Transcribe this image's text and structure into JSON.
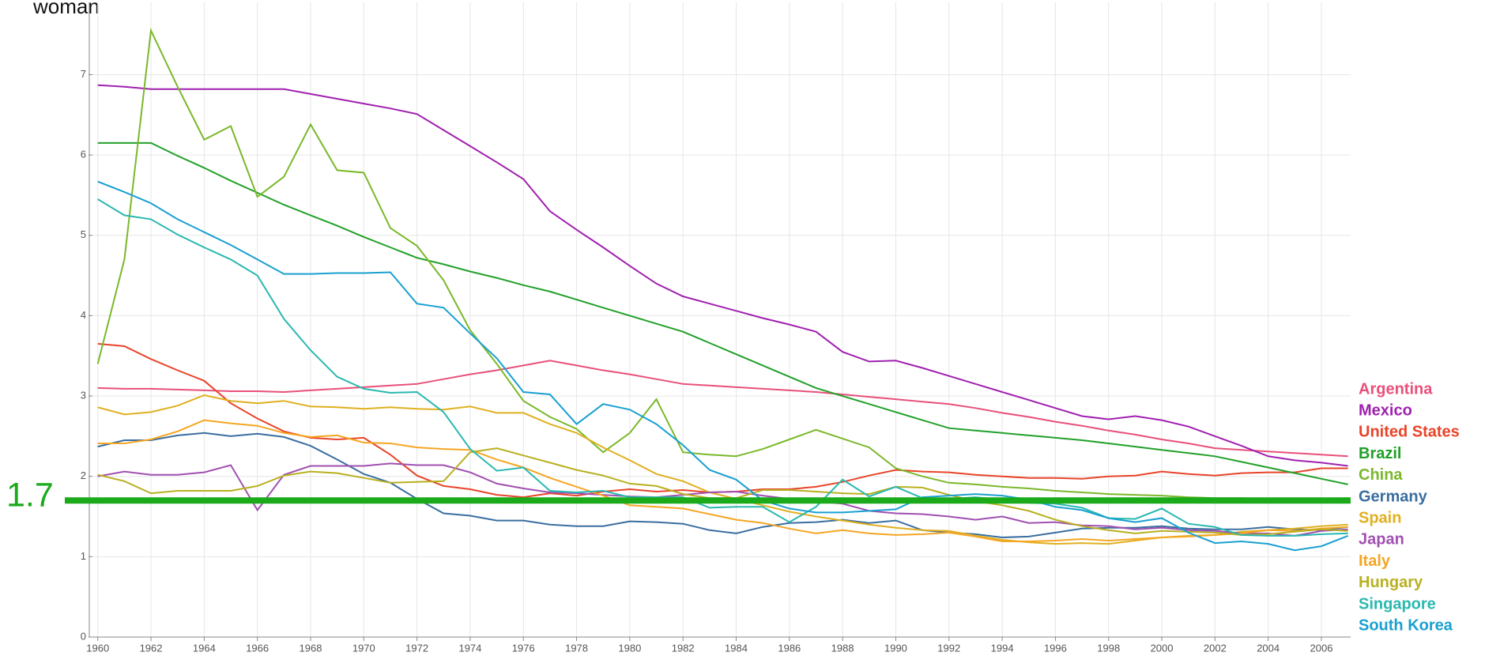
{
  "chart_data": {
    "type": "line",
    "y_label": "woman",
    "x": [
      1960,
      1961,
      1962,
      1963,
      1964,
      1965,
      1966,
      1967,
      1968,
      1969,
      1970,
      1971,
      1972,
      1973,
      1974,
      1975,
      1976,
      1977,
      1978,
      1979,
      1980,
      1981,
      1982,
      1983,
      1984,
      1985,
      1986,
      1987,
      1988,
      1989,
      1990,
      1991,
      1992,
      1993,
      1994,
      1995,
      1996,
      1997,
      1998,
      1999,
      2000,
      2001,
      2002,
      2003,
      2004,
      2005,
      2006,
      2007
    ],
    "xlim": [
      1959.8,
      2007.1
    ],
    "xticks": [
      1960,
      1962,
      1964,
      1966,
      1968,
      1970,
      1972,
      1974,
      1976,
      1978,
      1980,
      1982,
      1984,
      1986,
      1988,
      1990,
      1992,
      1994,
      1996,
      1998,
      2000,
      2002,
      2004,
      2006
    ],
    "ylim": [
      0,
      7.9
    ],
    "yticks": [
      0,
      1,
      2,
      3,
      4,
      5,
      6,
      7
    ],
    "grid": true,
    "hline": 1.7,
    "hline_color": "#1aaa1a",
    "series": [
      {
        "name": "Argentina",
        "color": "#e8507a",
        "values": [
          3.1,
          3.09,
          3.09,
          3.08,
          3.07,
          3.06,
          3.06,
          3.05,
          3.07,
          3.09,
          3.11,
          3.13,
          3.15,
          3.21,
          3.27,
          3.32,
          3.38,
          3.44,
          3.38,
          3.32,
          3.27,
          3.21,
          3.15,
          3.13,
          3.11,
          3.09,
          3.07,
          3.05,
          3.02,
          2.99,
          2.96,
          2.93,
          2.9,
          2.85,
          2.79,
          2.74,
          2.68,
          2.63,
          2.57,
          2.52,
          2.46,
          2.41,
          2.35,
          2.33,
          2.31,
          2.29,
          2.27,
          2.25
        ]
      },
      {
        "name": "Mexico",
        "color": "#a020b0",
        "values": [
          6.87,
          6.85,
          6.82,
          6.82,
          6.82,
          6.82,
          6.82,
          6.82,
          6.76,
          6.7,
          6.64,
          6.58,
          6.51,
          6.31,
          6.11,
          5.91,
          5.7,
          5.3,
          5.07,
          4.85,
          4.62,
          4.4,
          4.24,
          4.15,
          4.06,
          3.97,
          3.89,
          3.8,
          3.55,
          3.43,
          3.44,
          3.35,
          3.25,
          3.15,
          3.05,
          2.95,
          2.85,
          2.75,
          2.71,
          2.75,
          2.7,
          2.62,
          2.5,
          2.38,
          2.25,
          2.2,
          2.17,
          2.13
        ]
      },
      {
        "name": "United States",
        "color": "#e8442a",
        "values": [
          3.65,
          3.62,
          3.46,
          3.32,
          3.19,
          2.91,
          2.72,
          2.56,
          2.48,
          2.46,
          2.48,
          2.27,
          2.01,
          1.88,
          1.84,
          1.77,
          1.74,
          1.79,
          1.76,
          1.81,
          1.84,
          1.81,
          1.83,
          1.8,
          1.81,
          1.84,
          1.84,
          1.87,
          1.93,
          2.01,
          2.08,
          2.06,
          2.05,
          2.02,
          2.0,
          1.98,
          1.98,
          1.97,
          2.0,
          2.01,
          2.06,
          2.03,
          2.01,
          2.04,
          2.05,
          2.05,
          2.1,
          2.1
        ]
      },
      {
        "name": "Brazil",
        "color": "#22a02a",
        "values": [
          6.15,
          6.15,
          6.15,
          5.99,
          5.84,
          5.68,
          5.53,
          5.38,
          5.25,
          5.12,
          4.98,
          4.85,
          4.72,
          4.64,
          4.55,
          4.47,
          4.38,
          4.3,
          4.2,
          4.1,
          4.0,
          3.9,
          3.8,
          3.66,
          3.52,
          3.38,
          3.24,
          3.1,
          3.0,
          2.9,
          2.8,
          2.7,
          2.6,
          2.57,
          2.54,
          2.51,
          2.48,
          2.45,
          2.41,
          2.37,
          2.33,
          2.29,
          2.25,
          2.18,
          2.11,
          2.04,
          1.97,
          1.9
        ]
      },
      {
        "name": "China",
        "color": "#7ab82a",
        "values": [
          3.4,
          4.7,
          7.55,
          6.85,
          6.19,
          6.36,
          5.48,
          5.73,
          6.38,
          5.81,
          5.78,
          5.09,
          4.87,
          4.44,
          3.82,
          3.4,
          2.94,
          2.74,
          2.59,
          2.3,
          2.54,
          2.96,
          2.3,
          2.27,
          2.25,
          2.34,
          2.46,
          2.58,
          2.47,
          2.36,
          2.1,
          2.0,
          1.92,
          1.9,
          1.87,
          1.85,
          1.82,
          1.8,
          1.78,
          1.77,
          1.76,
          1.74,
          1.73,
          1.73,
          1.72,
          1.72,
          1.72,
          1.73
        ]
      },
      {
        "name": "Germany",
        "color": "#3a6ea0",
        "values": [
          2.37,
          2.45,
          2.45,
          2.51,
          2.54,
          2.5,
          2.53,
          2.49,
          2.38,
          2.21,
          2.03,
          1.92,
          1.72,
          1.54,
          1.51,
          1.45,
          1.45,
          1.4,
          1.38,
          1.38,
          1.44,
          1.43,
          1.41,
          1.33,
          1.29,
          1.37,
          1.42,
          1.43,
          1.46,
          1.42,
          1.45,
          1.33,
          1.3,
          1.28,
          1.24,
          1.25,
          1.3,
          1.35,
          1.36,
          1.36,
          1.38,
          1.35,
          1.34,
          1.34,
          1.37,
          1.34,
          1.33,
          1.37
        ]
      },
      {
        "name": "Spain",
        "color": "#e0b020",
        "values": [
          2.86,
          2.77,
          2.8,
          2.88,
          3.01,
          2.94,
          2.91,
          2.94,
          2.87,
          2.86,
          2.84,
          2.86,
          2.84,
          2.83,
          2.87,
          2.79,
          2.79,
          2.65,
          2.54,
          2.36,
          2.2,
          2.03,
          1.94,
          1.8,
          1.72,
          1.64,
          1.56,
          1.5,
          1.45,
          1.4,
          1.36,
          1.33,
          1.32,
          1.26,
          1.21,
          1.18,
          1.16,
          1.17,
          1.16,
          1.2,
          1.24,
          1.26,
          1.27,
          1.31,
          1.33,
          1.35,
          1.38,
          1.4
        ]
      },
      {
        "name": "Japan",
        "color": "#a050b0",
        "values": [
          2.0,
          2.06,
          2.02,
          2.02,
          2.05,
          2.14,
          1.58,
          2.02,
          2.13,
          2.13,
          2.13,
          2.16,
          2.14,
          2.14,
          2.05,
          1.91,
          1.85,
          1.8,
          1.79,
          1.77,
          1.75,
          1.74,
          1.77,
          1.8,
          1.81,
          1.76,
          1.72,
          1.69,
          1.66,
          1.57,
          1.54,
          1.53,
          1.5,
          1.46,
          1.5,
          1.42,
          1.43,
          1.39,
          1.38,
          1.34,
          1.36,
          1.33,
          1.32,
          1.29,
          1.29,
          1.26,
          1.32,
          1.34
        ]
      },
      {
        "name": "Italy",
        "color": "#f5a623",
        "values": [
          2.41,
          2.41,
          2.46,
          2.56,
          2.7,
          2.66,
          2.63,
          2.54,
          2.49,
          2.51,
          2.42,
          2.41,
          2.36,
          2.34,
          2.33,
          2.21,
          2.11,
          1.98,
          1.87,
          1.76,
          1.64,
          1.62,
          1.6,
          1.53,
          1.46,
          1.42,
          1.35,
          1.29,
          1.33,
          1.29,
          1.27,
          1.28,
          1.3,
          1.25,
          1.19,
          1.19,
          1.2,
          1.22,
          1.2,
          1.22,
          1.24,
          1.25,
          1.27,
          1.29,
          1.33,
          1.32,
          1.35,
          1.37
        ]
      },
      {
        "name": "Hungary",
        "color": "#b8b020",
        "values": [
          2.02,
          1.94,
          1.79,
          1.82,
          1.82,
          1.82,
          1.88,
          2.01,
          2.06,
          2.04,
          1.98,
          1.92,
          1.93,
          1.94,
          2.3,
          2.35,
          2.26,
          2.17,
          2.08,
          2.01,
          1.91,
          1.88,
          1.78,
          1.73,
          1.73,
          1.83,
          1.83,
          1.81,
          1.79,
          1.78,
          1.87,
          1.86,
          1.77,
          1.69,
          1.64,
          1.57,
          1.46,
          1.38,
          1.33,
          1.29,
          1.32,
          1.31,
          1.3,
          1.27,
          1.28,
          1.31,
          1.34,
          1.32
        ]
      },
      {
        "name": "Singapore",
        "color": "#2ab8b0",
        "values": [
          5.45,
          5.25,
          5.2,
          5.01,
          4.85,
          4.7,
          4.5,
          3.96,
          3.57,
          3.24,
          3.09,
          3.04,
          3.05,
          2.8,
          2.34,
          2.07,
          2.11,
          1.82,
          1.8,
          1.82,
          1.74,
          1.74,
          1.74,
          1.61,
          1.62,
          1.62,
          1.43,
          1.62,
          1.96,
          1.75,
          1.87,
          1.73,
          1.72,
          1.74,
          1.71,
          1.67,
          1.66,
          1.61,
          1.48,
          1.47,
          1.6,
          1.41,
          1.37,
          1.27,
          1.26,
          1.26,
          1.28,
          1.29
        ]
      },
      {
        "name": "South Korea",
        "color": "#1aa0d0",
        "values": [
          5.67,
          5.54,
          5.4,
          5.2,
          5.04,
          4.88,
          4.7,
          4.52,
          4.52,
          4.53,
          4.53,
          4.54,
          4.15,
          4.1,
          3.78,
          3.47,
          3.05,
          3.02,
          2.65,
          2.9,
          2.83,
          2.65,
          2.39,
          2.08,
          1.96,
          1.7,
          1.6,
          1.55,
          1.55,
          1.57,
          1.59,
          1.74,
          1.76,
          1.78,
          1.76,
          1.71,
          1.62,
          1.58,
          1.48,
          1.43,
          1.48,
          1.3,
          1.17,
          1.19,
          1.16,
          1.08,
          1.13,
          1.26
        ]
      }
    ]
  }
}
